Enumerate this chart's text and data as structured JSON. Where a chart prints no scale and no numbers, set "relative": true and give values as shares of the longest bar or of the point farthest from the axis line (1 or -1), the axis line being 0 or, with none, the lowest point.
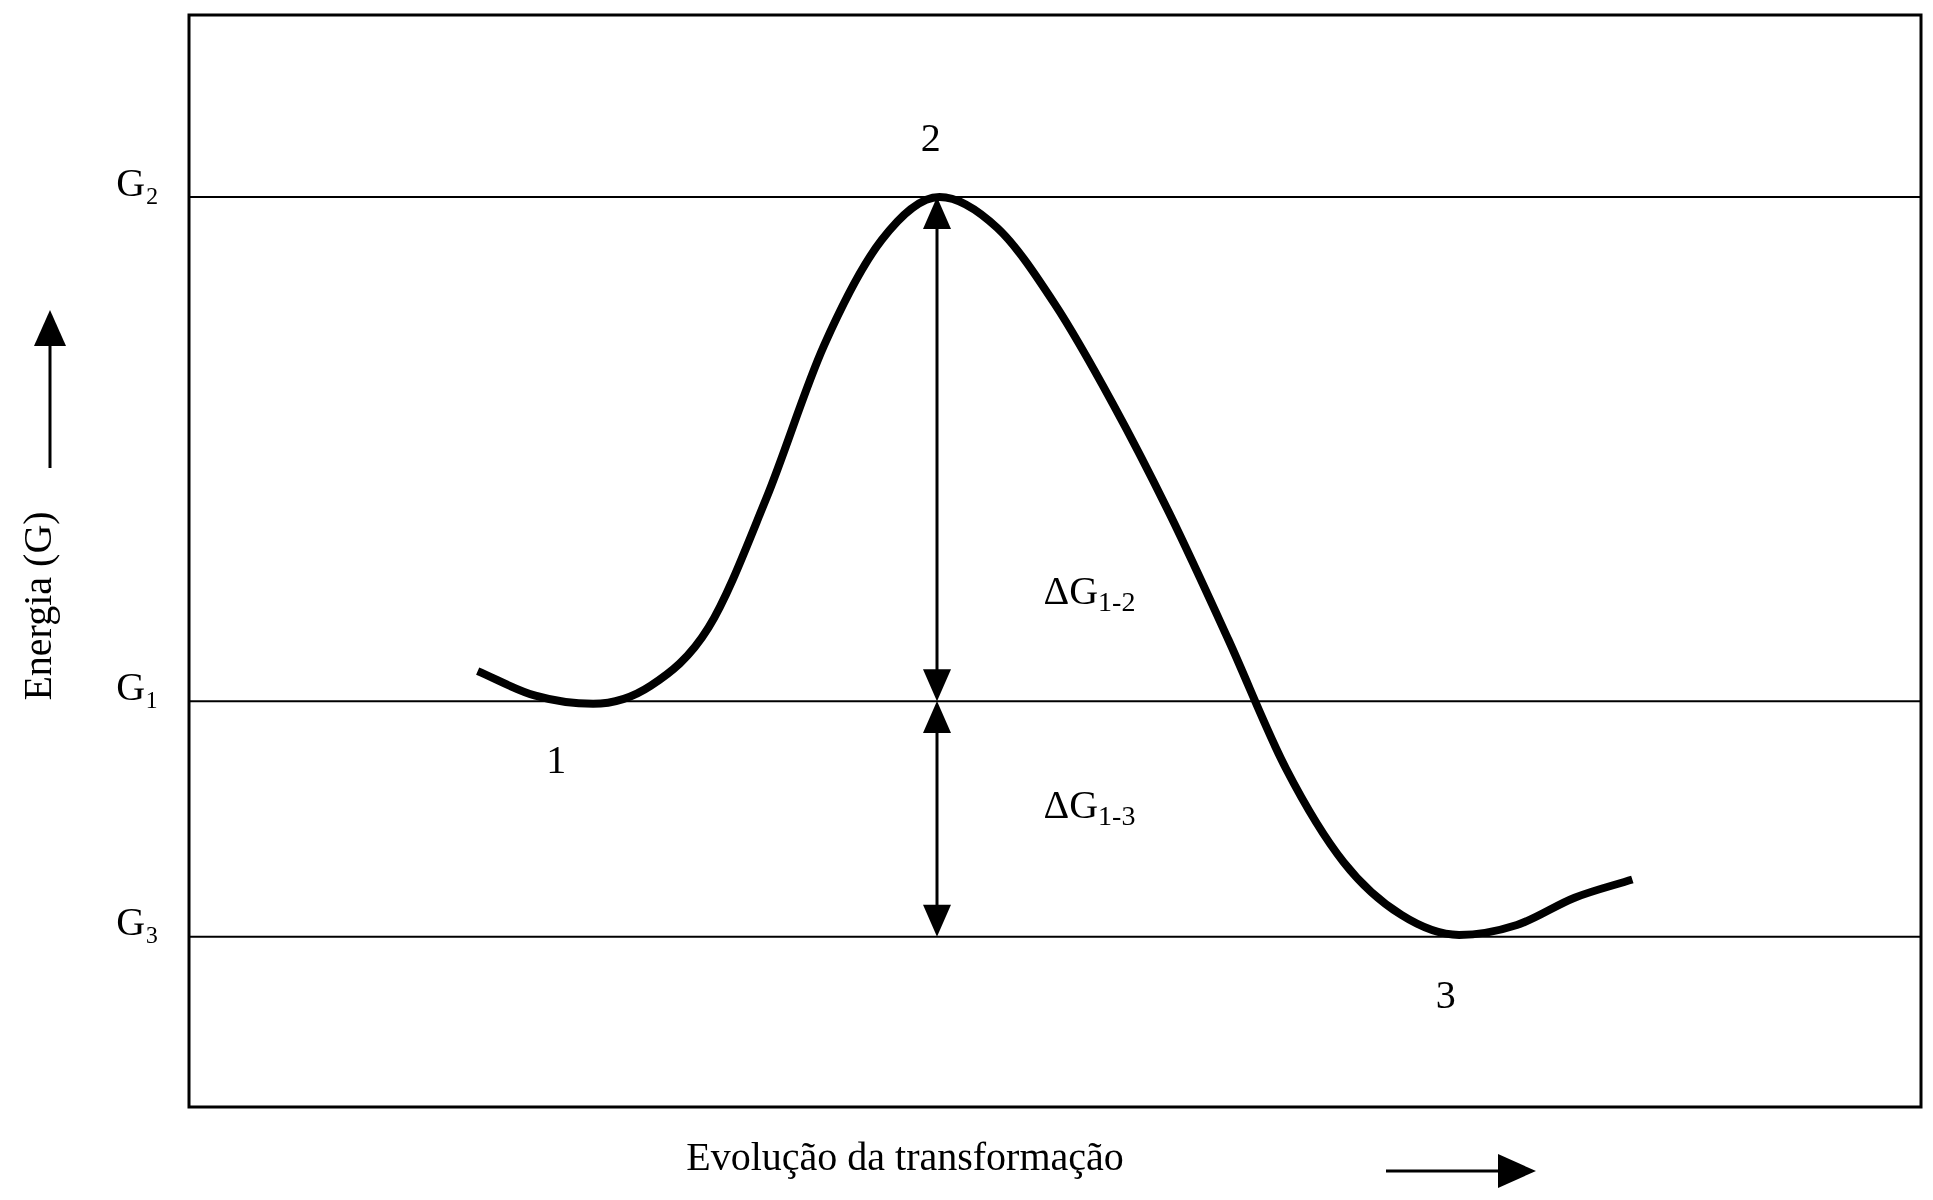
{
  "chart_data": {
    "type": "line",
    "relative": true,
    "xlabel": "Evolução da transformação",
    "ylabel": "Energia (G)",
    "color": "#000000",
    "marker": "none",
    "legend": false,
    "categories": [
      null,
      null,
      null,
      null,
      null,
      null,
      null,
      null,
      null,
      null,
      null,
      null,
      null,
      null,
      null,
      null,
      null,
      null,
      null,
      null,
      null,
      null,
      null,
      null,
      null,
      null,
      null,
      null,
      null,
      null,
      null
    ],
    "values": [
      null,
      null,
      null,
      null,
      null,
      0.479,
      0.452,
      0.443,
      0.463,
      0.527,
      0.669,
      0.837,
      0.953,
      1,
      0.966,
      0.882,
      0.773,
      0.65,
      0.514,
      0.372,
      0.269,
      0.211,
      0.189,
      0.2,
      0.23,
      0.25,
      null,
      null,
      null,
      null,
      null
    ],
    "ref_lines": [
      {
        "axis": "y",
        "value": 1,
        "label": "G₂",
        "color": "#000000"
      },
      {
        "axis": "y",
        "value": 0.446,
        "label": "G₁",
        "color": "#000000"
      },
      {
        "axis": "y",
        "value": 0.187,
        "label": "G₃",
        "color": "#000000"
      }
    ],
    "annotations": [
      "1",
      "2",
      "3",
      "ΔG$_{1-2}$",
      "ΔG$_{1-3}$"
    ]
  }
}
